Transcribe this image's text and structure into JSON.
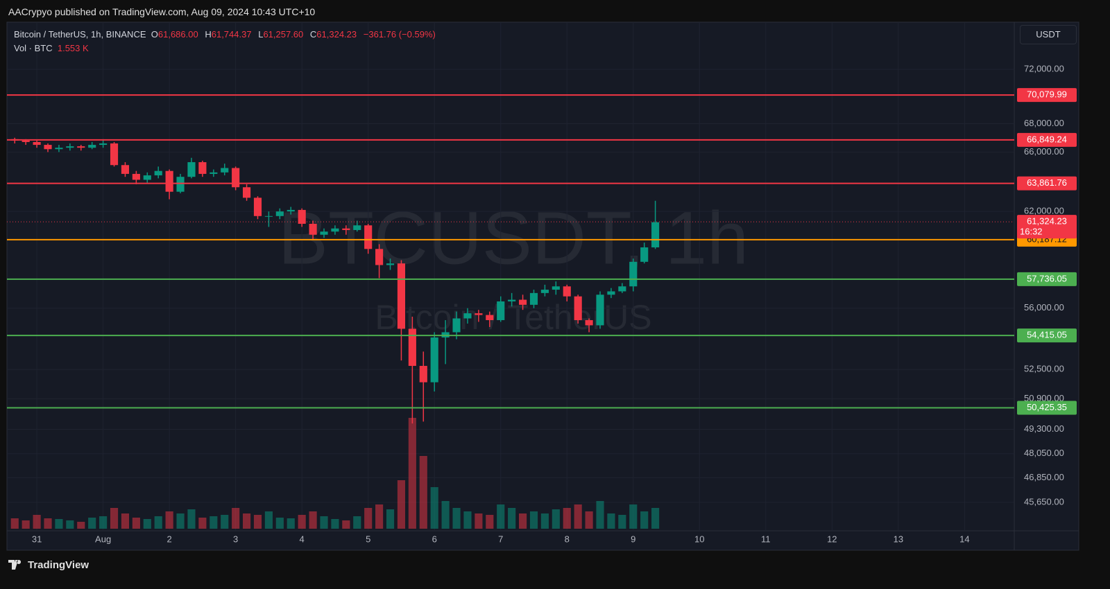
{
  "header": {
    "publisher": "AACrypyo published on TradingView.com, Aug 09, 2024 10:43 UTC+10"
  },
  "footer": {
    "brand": "TradingView"
  },
  "chart_data": {
    "type": "candlestick",
    "symbol": "Bitcoin / TetherUS, 1h, BINANCE",
    "legend_values": {
      "o_label": "O",
      "o": "61,686.00",
      "h_label": "H",
      "h": "61,744.37",
      "l_label": "L",
      "l": "61,257.60",
      "c_label": "C",
      "c": "61,324.23",
      "change": "−361.76 (−0.59%)"
    },
    "volume_label": "Vol · BTC",
    "volume_value": "1.553 K",
    "currency": "USDT",
    "watermark": "BTCUSDT, 1h",
    "watermark_sub": "Bitcoin / TetherUS",
    "log_scale": true,
    "grid": true,
    "up_color": "#089981",
    "down_color": "#f23645",
    "ylim": [
      44337,
      75775
    ],
    "yticks": [
      {
        "value": 72000,
        "label": "72,000.00"
      },
      {
        "value": 68000,
        "label": "68,000.00"
      },
      {
        "value": 66000,
        "label": "66,000.00"
      },
      {
        "value": 62000,
        "label": "62,000.00"
      },
      {
        "value": 56000,
        "label": "56,000.00"
      },
      {
        "value": 52500,
        "label": "52,500.00"
      },
      {
        "value": 50900,
        "label": "50,900.00"
      },
      {
        "value": 49300,
        "label": "49,300.00"
      },
      {
        "value": 48050,
        "label": "48,050.00"
      },
      {
        "value": 46850,
        "label": "46,850.00"
      },
      {
        "value": 45650,
        "label": "45,650.00"
      }
    ],
    "levels": [
      {
        "value": 70079.99,
        "label": "70,079.99",
        "color": "#f23645"
      },
      {
        "value": 66849.24,
        "label": "66,849.24",
        "color": "#f23645"
      },
      {
        "value": 63861.76,
        "label": "63,861.76",
        "color": "#f23645"
      },
      {
        "value": 60187.12,
        "label": "60,187.12",
        "color": "#ff9800"
      },
      {
        "value": 57736.05,
        "label": "57,736.05",
        "color": "#4caf50"
      },
      {
        "value": 54415.05,
        "label": "54,415.05",
        "color": "#4caf50"
      },
      {
        "value": 50425.35,
        "label": "50,425.35",
        "color": "#4caf50"
      }
    ],
    "last_price": {
      "value": 61324.23,
      "label": "61,324.23",
      "countdown": "16:32",
      "color": "#f23645"
    },
    "categories": [
      null,
      null,
      "31",
      null,
      null,
      null,
      null,
      null,
      "Aug",
      null,
      null,
      null,
      null,
      null,
      "2",
      null,
      null,
      null,
      null,
      null,
      "3",
      null,
      null,
      null,
      null,
      null,
      "4",
      null,
      null,
      null,
      null,
      null,
      "5",
      null,
      null,
      null,
      null,
      null,
      "6",
      null,
      null,
      null,
      null,
      null,
      "7",
      null,
      null,
      null,
      null,
      null,
      "8",
      null,
      null,
      null,
      null,
      null,
      "9",
      null,
      null,
      null,
      null,
      null,
      "10",
      null,
      null,
      null,
      null,
      null,
      "11",
      null,
      null,
      null,
      null,
      null,
      "12",
      null,
      null,
      null,
      null,
      null,
      "13",
      null,
      null,
      null,
      null,
      null,
      "14",
      null,
      null,
      null,
      null
    ],
    "open": [
      66900,
      66800,
      66700,
      66500,
      66200,
      66300,
      66400,
      66300,
      66500,
      66600,
      65100,
      64500,
      64100,
      64400,
      64700,
      63300,
      64300,
      65300,
      64500,
      64600,
      64900,
      63600,
      62900,
      61700,
      61700,
      62000,
      62100,
      61200,
      60500,
      60700,
      60900,
      60800,
      61100,
      59600,
      58600,
      58700,
      54800,
      52700,
      51800,
      54300,
      54600,
      55400,
      55700,
      55600,
      55300,
      56400,
      56500,
      56200,
      56900,
      57100,
      57300,
      56700,
      55300,
      55000,
      56800,
      57000,
      57300,
      58800,
      59700,
      null,
      null,
      null,
      null,
      null,
      null,
      null,
      null,
      null,
      null,
      null,
      null,
      null,
      null,
      null,
      null,
      null,
      null,
      null,
      null,
      null,
      null,
      null,
      null,
      null,
      null,
      null,
      null,
      null,
      null,
      null,
      null
    ],
    "high": [
      67000,
      66900,
      66800,
      66600,
      66500,
      66600,
      66500,
      66700,
      66900,
      66700,
      65300,
      64700,
      64600,
      65000,
      64800,
      64500,
      65600,
      65400,
      64800,
      65200,
      65000,
      63800,
      63000,
      62000,
      62200,
      62300,
      62200,
      61400,
      60900,
      61100,
      61100,
      61400,
      61200,
      59900,
      59000,
      58900,
      55500,
      53500,
      54600,
      55300,
      55800,
      56000,
      55900,
      55800,
      56700,
      56900,
      56800,
      57100,
      57400,
      57600,
      57400,
      56800,
      55400,
      57000,
      57200,
      57500,
      59000,
      60000,
      62700,
      null,
      null,
      null,
      null,
      null,
      null,
      null,
      null,
      null,
      null,
      null,
      null,
      null,
      null,
      null,
      null,
      null,
      null,
      null,
      null,
      null,
      null,
      null,
      null,
      null,
      null,
      null,
      null,
      null,
      null,
      null,
      null
    ],
    "low": [
      66600,
      66500,
      66300,
      66000,
      66000,
      66100,
      66100,
      66200,
      66300,
      65000,
      64300,
      63800,
      63900,
      64200,
      62800,
      63200,
      64200,
      64300,
      64300,
      64400,
      63400,
      62700,
      61500,
      61000,
      61500,
      61800,
      61000,
      60200,
      60300,
      60500,
      60500,
      60700,
      59300,
      57800,
      58300,
      53000,
      49600,
      49700,
      51300,
      52800,
      54200,
      55100,
      55200,
      54900,
      55200,
      56100,
      55900,
      56000,
      56700,
      56800,
      56400,
      55100,
      54600,
      54800,
      56600,
      56900,
      57000,
      58700,
      59600,
      null,
      null,
      null,
      null,
      null,
      null,
      null,
      null,
      null,
      null,
      null,
      null,
      null,
      null,
      null,
      null,
      null,
      null,
      null,
      null,
      null,
      null,
      null,
      null,
      null,
      null,
      null,
      null,
      null,
      null,
      null,
      null
    ],
    "close": [
      66800,
      66700,
      66500,
      66200,
      66300,
      66400,
      66300,
      66500,
      66600,
      65100,
      64500,
      64100,
      64400,
      64700,
      63300,
      64300,
      65300,
      64500,
      64600,
      64900,
      63600,
      62900,
      61700,
      61700,
      62000,
      62100,
      61200,
      60500,
      60700,
      60900,
      60800,
      61100,
      59600,
      58600,
      58700,
      54800,
      52700,
      51800,
      54300,
      54600,
      55400,
      55700,
      55600,
      55300,
      56400,
      56500,
      56200,
      56900,
      57100,
      57300,
      56700,
      55300,
      55000,
      56800,
      57000,
      57300,
      58800,
      59700,
      61300,
      null,
      null,
      null,
      null,
      null,
      null,
      null,
      null,
      null,
      null,
      null,
      null,
      null,
      null,
      null,
      null,
      null,
      null,
      null,
      null,
      null,
      null,
      null,
      null,
      null,
      null,
      null,
      null,
      null,
      null,
      null,
      null
    ],
    "volume": [
      6000,
      4800,
      8000,
      6000,
      5600,
      4800,
      4000,
      6400,
      7200,
      12000,
      8800,
      6400,
      5600,
      7200,
      10000,
      8800,
      11200,
      6400,
      7200,
      8000,
      12000,
      8800,
      8000,
      10000,
      6400,
      6000,
      8000,
      10000,
      7200,
      5600,
      4800,
      7200,
      12000,
      14000,
      11200,
      28000,
      64000,
      42000,
      24000,
      16000,
      12000,
      10000,
      8800,
      8000,
      14000,
      12000,
      8800,
      10000,
      8800,
      11200,
      12000,
      14000,
      10000,
      16000,
      8800,
      8000,
      14000,
      10000,
      12000,
      null,
      null,
      null,
      null,
      null,
      null,
      null,
      null,
      null,
      null,
      null,
      null,
      null,
      null,
      null,
      null,
      null,
      null,
      null,
      null,
      null,
      null,
      null,
      null,
      null,
      null,
      null,
      null,
      null,
      null,
      null,
      null
    ]
  }
}
